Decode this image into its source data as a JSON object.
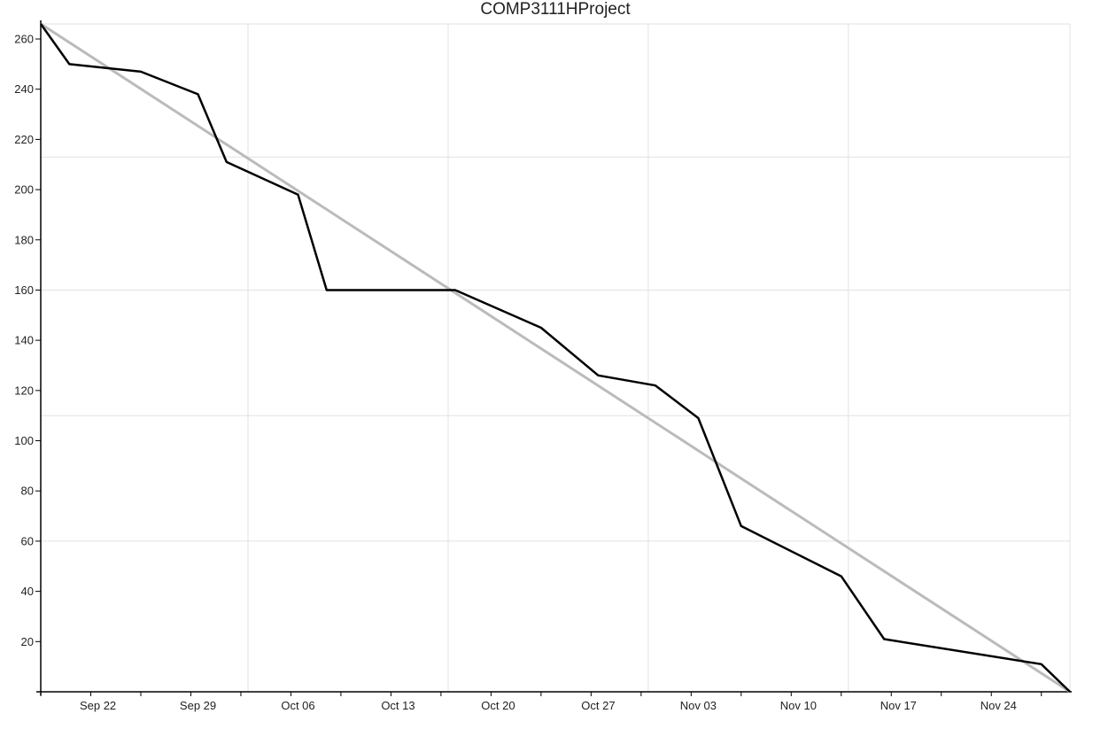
{
  "chart_data": {
    "type": "line",
    "title": "COMP3111HProject",
    "xlabel": "",
    "ylabel": "",
    "x_axis": "date",
    "x_range": [
      "2014-09-18",
      "2014-11-29"
    ],
    "ylim": [
      0,
      266
    ],
    "y_ticks": [
      20,
      40,
      60,
      80,
      100,
      120,
      140,
      160,
      180,
      200,
      220,
      240,
      260
    ],
    "x_ticks": [
      {
        "date": "2014-09-22",
        "label": "Sep 22"
      },
      {
        "date": "2014-09-29",
        "label": "Sep 29"
      },
      {
        "date": "2014-10-06",
        "label": "Oct 06"
      },
      {
        "date": "2014-10-13",
        "label": "Oct 13"
      },
      {
        "date": "2014-10-20",
        "label": "Oct 20"
      },
      {
        "date": "2014-10-27",
        "label": "Oct 27"
      },
      {
        "date": "2014-11-03",
        "label": "Nov 03"
      },
      {
        "date": "2014-11-10",
        "label": "Nov 10"
      },
      {
        "date": "2014-11-17",
        "label": "Nov 17"
      },
      {
        "date": "2014-11-24",
        "label": "Nov 24"
      }
    ],
    "grid": true,
    "series": [
      {
        "color": "#bbbbbb",
        "points": [
          {
            "x": "2014-09-18",
            "y": 266
          },
          {
            "x": "2014-11-29",
            "y": 0
          }
        ]
      },
      {
        "color": "#000000",
        "points": [
          {
            "x": "2014-09-18",
            "y": 266
          },
          {
            "x": "2014-09-20",
            "y": 250
          },
          {
            "x": "2014-09-25",
            "y": 247
          },
          {
            "x": "2014-09-29",
            "y": 238
          },
          {
            "x": "2014-10-01",
            "y": 211
          },
          {
            "x": "2014-10-06",
            "y": 198
          },
          {
            "x": "2014-10-08",
            "y": 160
          },
          {
            "x": "2014-10-17",
            "y": 160
          },
          {
            "x": "2014-10-23",
            "y": 145
          },
          {
            "x": "2014-10-27",
            "y": 126
          },
          {
            "x": "2014-10-31",
            "y": 122
          },
          {
            "x": "2014-11-03",
            "y": 109
          },
          {
            "x": "2014-11-06",
            "y": 66
          },
          {
            "x": "2014-11-13",
            "y": 46
          },
          {
            "x": "2014-11-16",
            "y": 21
          },
          {
            "x": "2014-11-27",
            "y": 11
          },
          {
            "x": "2014-11-29",
            "y": 0
          }
        ]
      }
    ]
  }
}
